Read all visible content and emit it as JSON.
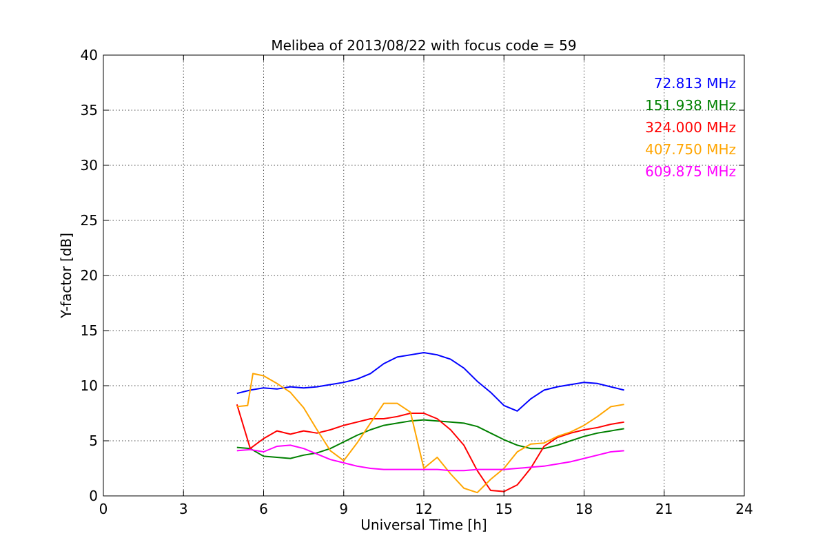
{
  "chart_data": {
    "type": "line",
    "title": "Melibea of 2013/08/22 with focus code = 59",
    "xlabel": "Universal Time [h]",
    "ylabel": "Y-factor [dB]",
    "xlim": [
      0,
      24
    ],
    "ylim": [
      0,
      40
    ],
    "xticks": [
      0,
      3,
      6,
      9,
      12,
      15,
      18,
      21,
      24
    ],
    "yticks": [
      0,
      5,
      10,
      15,
      20,
      25,
      30,
      35,
      40
    ],
    "grid": true,
    "legend_position": "top-right",
    "series": [
      {
        "name": "72.813 MHz",
        "color": "#0000ff",
        "x": [
          5.0,
          5.5,
          6.0,
          6.5,
          7.0,
          7.5,
          8.0,
          8.5,
          9.0,
          9.5,
          10.0,
          10.5,
          11.0,
          11.5,
          12.0,
          12.5,
          13.0,
          13.5,
          14.0,
          14.5,
          15.0,
          15.5,
          16.0,
          16.5,
          17.0,
          17.5,
          18.0,
          18.5,
          19.0,
          19.5
        ],
        "y": [
          9.3,
          9.6,
          9.8,
          9.7,
          9.9,
          9.8,
          9.9,
          10.1,
          10.3,
          10.6,
          11.1,
          12.0,
          12.6,
          12.8,
          13.0,
          12.8,
          12.4,
          11.6,
          10.4,
          9.4,
          8.2,
          7.7,
          8.8,
          9.6,
          9.9,
          10.1,
          10.3,
          10.2,
          9.9,
          9.6
        ]
      },
      {
        "name": "151.938 MHz",
        "color": "#008000",
        "x": [
          5.0,
          5.5,
          6.0,
          6.5,
          7.0,
          7.5,
          8.0,
          8.5,
          9.0,
          9.5,
          10.0,
          10.5,
          11.0,
          11.5,
          12.0,
          12.5,
          13.0,
          13.5,
          14.0,
          14.5,
          15.0,
          15.5,
          16.0,
          16.5,
          17.0,
          17.5,
          18.0,
          18.5,
          19.0,
          19.5
        ],
        "y": [
          4.4,
          4.3,
          3.6,
          3.5,
          3.4,
          3.7,
          3.9,
          4.3,
          4.9,
          5.5,
          6.0,
          6.4,
          6.6,
          6.8,
          6.9,
          6.8,
          6.7,
          6.6,
          6.3,
          5.7,
          5.1,
          4.6,
          4.3,
          4.3,
          4.6,
          5.0,
          5.4,
          5.7,
          5.9,
          6.1
        ]
      },
      {
        "name": "324.000 MHz",
        "color": "#ff0000",
        "x": [
          5.0,
          5.5,
          6.0,
          6.5,
          7.0,
          7.5,
          8.0,
          8.5,
          9.0,
          9.5,
          10.0,
          10.5,
          11.0,
          11.5,
          12.0,
          12.5,
          13.0,
          13.5,
          14.0,
          14.5,
          15.0,
          15.5,
          16.0,
          16.5,
          17.0,
          17.5,
          18.0,
          18.5,
          19.0,
          19.5
        ],
        "y": [
          8.3,
          4.3,
          5.2,
          5.9,
          5.6,
          5.9,
          5.7,
          6.0,
          6.4,
          6.7,
          7.0,
          7.0,
          7.2,
          7.5,
          7.5,
          7.0,
          6.0,
          4.6,
          2.3,
          0.5,
          0.4,
          1.0,
          2.5,
          4.5,
          5.3,
          5.7,
          6.0,
          6.2,
          6.5,
          6.7
        ]
      },
      {
        "name": "407.750 MHz",
        "color": "#ffa500",
        "x": [
          5.0,
          5.4,
          5.6,
          6.0,
          6.5,
          7.0,
          7.5,
          8.0,
          8.5,
          9.0,
          9.5,
          10.0,
          10.5,
          11.0,
          11.5,
          12.0,
          12.5,
          13.0,
          13.5,
          14.0,
          14.5,
          15.0,
          15.5,
          16.0,
          16.5,
          17.0,
          17.5,
          18.0,
          18.5,
          19.0,
          19.5
        ],
        "y": [
          8.1,
          8.2,
          11.1,
          10.9,
          10.2,
          9.4,
          8.0,
          6.0,
          4.1,
          3.2,
          4.8,
          6.6,
          8.4,
          8.4,
          7.6,
          2.5,
          3.5,
          2.0,
          0.7,
          0.3,
          1.5,
          2.5,
          4.0,
          4.7,
          4.8,
          5.4,
          5.8,
          6.4,
          7.2,
          8.1,
          8.3
        ]
      },
      {
        "name": "609.875 MHz",
        "color": "#ff00ff",
        "x": [
          5.0,
          5.5,
          6.0,
          6.5,
          7.0,
          7.5,
          8.0,
          8.5,
          9.0,
          9.5,
          10.0,
          10.5,
          11.0,
          11.5,
          12.0,
          12.5,
          13.0,
          13.5,
          14.0,
          14.5,
          15.0,
          15.5,
          16.0,
          16.5,
          17.0,
          17.5,
          18.0,
          18.5,
          19.0,
          19.5
        ],
        "y": [
          4.1,
          4.2,
          4.0,
          4.5,
          4.6,
          4.3,
          3.8,
          3.3,
          3.0,
          2.7,
          2.5,
          2.4,
          2.4,
          2.4,
          2.4,
          2.4,
          2.3,
          2.3,
          2.4,
          2.4,
          2.4,
          2.5,
          2.6,
          2.7,
          2.9,
          3.1,
          3.4,
          3.7,
          4.0,
          4.1
        ]
      }
    ]
  }
}
